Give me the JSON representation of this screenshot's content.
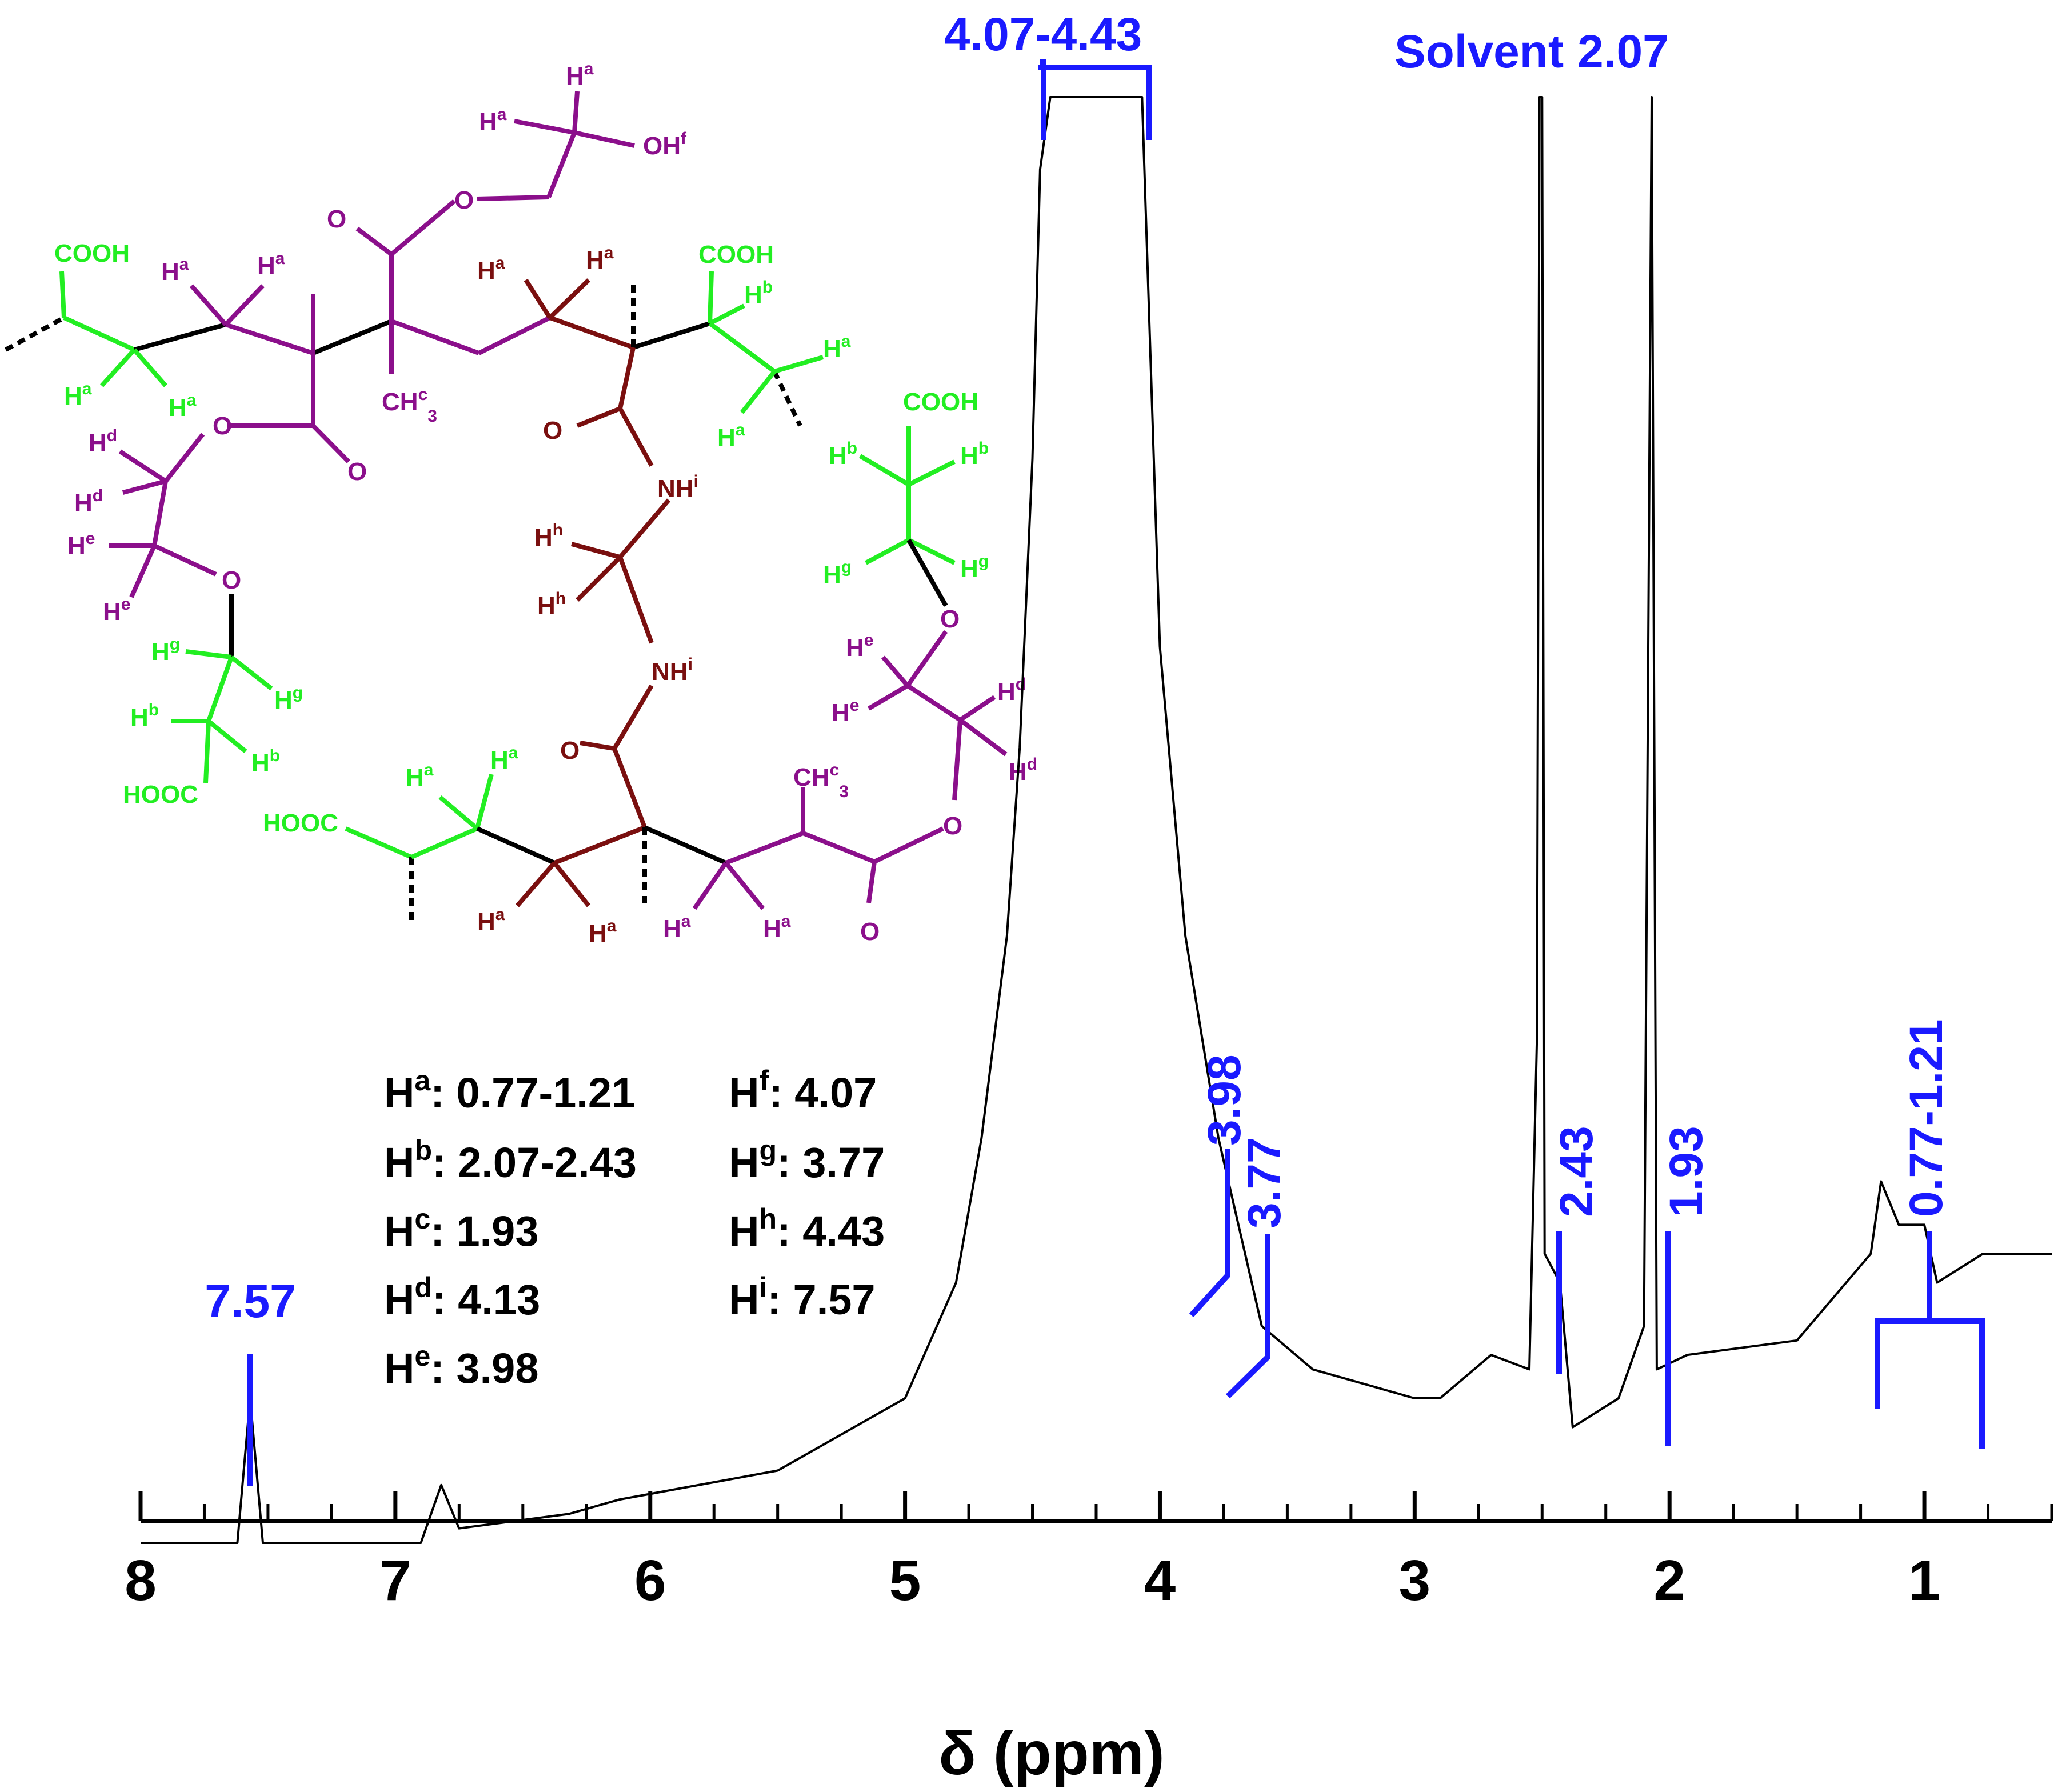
{
  "chart_data": {
    "type": "line",
    "title": "",
    "xlabel": "δ (ppm)",
    "ylabel": "",
    "x_reversed": true,
    "xlim": [
      8.0,
      0.5
    ],
    "x_ticks": [
      "8",
      "7",
      "6",
      "5",
      "4",
      "3",
      "2",
      "1"
    ],
    "x_tick_values": [
      8,
      7,
      6,
      5,
      4,
      3,
      2,
      1
    ],
    "y_unit": "relative intensity (approx., 0 = baseline)",
    "spectrum": [
      [
        8.0,
        0.0
      ],
      [
        7.62,
        0.0
      ],
      [
        7.57,
        0.1
      ],
      [
        7.52,
        0.0
      ],
      [
        6.9,
        0.0
      ],
      [
        6.82,
        0.04
      ],
      [
        6.75,
        0.01
      ],
      [
        6.32,
        0.02
      ],
      [
        6.12,
        0.03
      ],
      [
        5.5,
        0.05
      ],
      [
        5.0,
        0.1
      ],
      [
        4.8,
        0.18
      ],
      [
        4.7,
        0.28
      ],
      [
        4.6,
        0.42
      ],
      [
        4.55,
        0.55
      ],
      [
        4.5,
        0.75
      ],
      [
        4.47,
        0.95
      ],
      [
        4.43,
        1.0
      ],
      [
        4.3,
        1.0
      ],
      [
        4.13,
        1.0
      ],
      [
        4.07,
        1.0
      ],
      [
        4.0,
        0.62
      ],
      [
        3.98,
        0.58
      ],
      [
        3.9,
        0.42
      ],
      [
        3.77,
        0.28
      ],
      [
        3.6,
        0.15
      ],
      [
        3.4,
        0.12
      ],
      [
        3.0,
        0.1
      ],
      [
        2.9,
        0.1
      ],
      [
        2.7,
        0.13
      ],
      [
        2.55,
        0.12
      ],
      [
        2.52,
        0.35
      ],
      [
        2.51,
        1.0
      ],
      [
        2.5,
        1.0
      ],
      [
        2.49,
        0.2
      ],
      [
        2.43,
        0.18
      ],
      [
        2.38,
        0.08
      ],
      [
        2.2,
        0.1
      ],
      [
        2.1,
        0.15
      ],
      [
        2.07,
        1.0
      ],
      [
        2.05,
        0.12
      ],
      [
        1.93,
        0.13
      ],
      [
        1.5,
        0.14
      ],
      [
        1.21,
        0.2
      ],
      [
        1.17,
        0.25
      ],
      [
        1.1,
        0.22
      ],
      [
        1.0,
        0.22
      ],
      [
        0.95,
        0.18
      ],
      [
        0.77,
        0.2
      ],
      [
        0.5,
        0.2
      ]
    ],
    "peaks": [
      {
        "x": 7.57,
        "label": "7.57"
      },
      {
        "x": 4.25,
        "label": "4.07-4.43"
      },
      {
        "x": 3.98,
        "label": "3.98"
      },
      {
        "x": 3.77,
        "label": "3.77"
      },
      {
        "x": 2.5,
        "label": "Solvent"
      },
      {
        "x": 2.07,
        "label": "2.07"
      },
      {
        "x": 2.43,
        "label": "2.43"
      },
      {
        "x": 1.93,
        "label": "1.93"
      },
      {
        "x": 0.99,
        "label": "0.77-1.21"
      }
    ],
    "assignments": {
      "left": [
        {
          "base": "H",
          "sup": "a",
          "value": ": 0.77-1.21"
        },
        {
          "base": "H",
          "sup": "b",
          "value": ": 2.07-2.43"
        },
        {
          "base": "H",
          "sup": "c",
          "value": ": 1.93"
        },
        {
          "base": "H",
          "sup": "d",
          "value": ": 4.13"
        },
        {
          "base": "H",
          "sup": "e",
          "value": ": 3.98"
        }
      ],
      "right": [
        {
          "base": "H",
          "sup": "f",
          "value": ": 4.07"
        },
        {
          "base": "H",
          "sup": "g",
          "value": ": 3.77"
        },
        {
          "base": "H",
          "sup": "h",
          "value": ": 4.43"
        },
        {
          "base": "H",
          "sup": "i",
          "value": ": 7.57"
        }
      ]
    }
  },
  "structure": {
    "cooh": "COOH",
    "hooc": "HOOC",
    "o": "O",
    "oh": "OH",
    "nh": "NH",
    "ch": "CH",
    "three": "3",
    "h": "H",
    "sup_a": "a",
    "sup_b": "b",
    "sup_c": "c",
    "sup_d": "d",
    "sup_e": "e",
    "sup_f": "f",
    "sup_g": "g",
    "sup_h": "h",
    "sup_i": "i"
  },
  "colors": {
    "spectrum": "#000000",
    "annotation": "#1a1aff",
    "green_unit": "#22ee22",
    "purple_unit": "#8b0f8b",
    "brown_unit": "#7a0f0f"
  }
}
